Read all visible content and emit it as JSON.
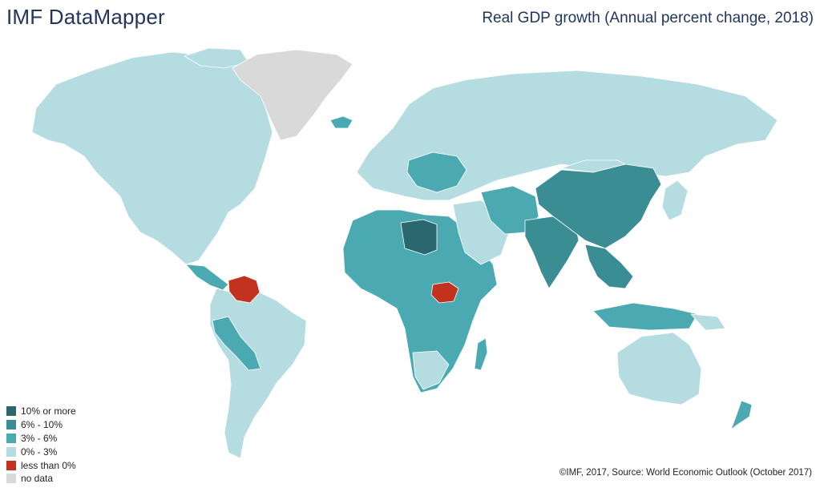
{
  "header": {
    "brand": "IMF DataMapper",
    "map_title": "Real GDP growth (Annual percent change, 2018)"
  },
  "legend": {
    "items": [
      {
        "label": "10% or more",
        "color": "#2a6870"
      },
      {
        "label": "6% - 10%",
        "color": "#3a8d93"
      },
      {
        "label": "3% - 6%",
        "color": "#4ba9b1"
      },
      {
        "label": "0% - 3%",
        "color": "#b5dde1"
      },
      {
        "label": "less than 0%",
        "color": "#c2321f"
      },
      {
        "label": "no data",
        "color": "#d9d9d9"
      }
    ]
  },
  "footer": {
    "credit": "©IMF, 2017, Source: World Economic Outlook (October 2017)"
  },
  "regions": [
    {
      "name": "north-america-region",
      "bucket": "0% - 3%"
    },
    {
      "name": "greenland-region",
      "bucket": "no data"
    },
    {
      "name": "south-america-region",
      "bucket": "0% - 3%"
    },
    {
      "name": "venezuela-region",
      "bucket": "less than 0%"
    },
    {
      "name": "europe-russia-region",
      "bucket": "0% - 3%"
    },
    {
      "name": "africa-region",
      "bucket": "3% - 6%"
    },
    {
      "name": "libya-region",
      "bucket": "10% or more"
    },
    {
      "name": "south-sudan-region",
      "bucket": "less than 0%"
    },
    {
      "name": "china-region",
      "bucket": "6% - 10%"
    },
    {
      "name": "india-region",
      "bucket": "6% - 10%"
    },
    {
      "name": "australia-region",
      "bucket": "0% - 3%"
    }
  ]
}
